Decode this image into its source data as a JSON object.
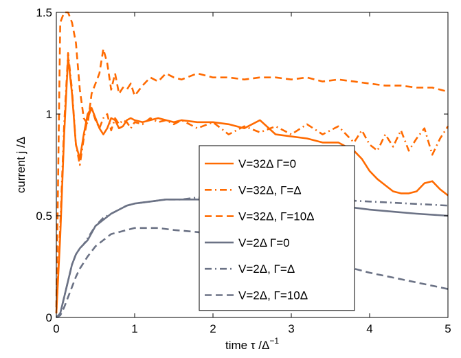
{
  "chart_data": {
    "type": "line",
    "title": "",
    "xlabel": "time τ /Δ",
    "xlabel_sup": "−1",
    "ylabel": "current j /Δ",
    "xlim": [
      0,
      5
    ],
    "ylim": [
      0,
      1.5
    ],
    "xticks": [
      0,
      1,
      2,
      3,
      4,
      5
    ],
    "xtick_labels": [
      "0",
      "1",
      "2",
      "3",
      "4",
      "5"
    ],
    "yticks": [
      0,
      0.5,
      1,
      1.5
    ],
    "ytick_labels": [
      "0",
      "0.5",
      "1",
      "1.5"
    ],
    "grid": false,
    "legend_position": "center-right",
    "colors": {
      "orange": "#ff6a00",
      "gray": "#6b7285"
    },
    "series": [
      {
        "name": "V=32Δ Γ=0",
        "color": "#ff6a00",
        "dash": "solid",
        "x": [
          0,
          0.05,
          0.1,
          0.15,
          0.2,
          0.25,
          0.3,
          0.35,
          0.4,
          0.45,
          0.5,
          0.55,
          0.6,
          0.65,
          0.7,
          0.75,
          0.8,
          0.85,
          0.9,
          0.95,
          1.0,
          1.1,
          1.2,
          1.3,
          1.4,
          1.5,
          1.6,
          1.8,
          2.0,
          2.2,
          2.4,
          2.6,
          2.8,
          3.0,
          3.2,
          3.4,
          3.6,
          3.8,
          3.9,
          4.0,
          4.1,
          4.2,
          4.3,
          4.4,
          4.5,
          4.6,
          4.7,
          4.8,
          4.9,
          5.0
        ],
        "y": [
          0.02,
          0.4,
          0.9,
          1.28,
          1.1,
          0.85,
          0.78,
          0.9,
          1.0,
          1.03,
          0.98,
          0.93,
          0.9,
          0.93,
          0.98,
          0.97,
          0.93,
          0.94,
          0.97,
          0.98,
          0.97,
          0.96,
          0.97,
          0.98,
          0.97,
          0.96,
          0.97,
          0.96,
          0.96,
          0.95,
          0.93,
          0.97,
          0.9,
          0.89,
          0.88,
          0.86,
          0.86,
          0.82,
          0.78,
          0.72,
          0.68,
          0.65,
          0.62,
          0.61,
          0.61,
          0.62,
          0.66,
          0.67,
          0.63,
          0.6
        ]
      },
      {
        "name": "V=32Δ, Γ=Δ",
        "color": "#ff6a00",
        "dash": "dashdot",
        "x": [
          0,
          0.05,
          0.1,
          0.15,
          0.2,
          0.25,
          0.3,
          0.35,
          0.4,
          0.45,
          0.5,
          0.55,
          0.6,
          0.65,
          0.7,
          0.75,
          0.8,
          0.85,
          0.9,
          0.95,
          1.0,
          1.1,
          1.2,
          1.3,
          1.4,
          1.5,
          1.6,
          1.8,
          2.0,
          2.2,
          2.4,
          2.6,
          2.8,
          3.0,
          3.2,
          3.4,
          3.6,
          3.8,
          3.9,
          4.0,
          4.1,
          4.2,
          4.3,
          4.4,
          4.5,
          4.6,
          4.7,
          4.8,
          4.9,
          5.0
        ],
        "y": [
          0.02,
          0.45,
          0.95,
          1.3,
          1.12,
          0.85,
          0.75,
          0.88,
          0.98,
          1.03,
          0.97,
          0.93,
          0.98,
          1.0,
          0.92,
          0.98,
          0.95,
          0.97,
          0.96,
          0.93,
          0.96,
          0.95,
          0.98,
          0.96,
          0.97,
          0.95,
          0.97,
          0.93,
          0.96,
          0.9,
          0.94,
          0.91,
          0.94,
          0.9,
          0.95,
          0.9,
          0.94,
          0.86,
          0.92,
          0.85,
          0.82,
          0.9,
          0.84,
          0.92,
          0.82,
          0.88,
          0.93,
          0.8,
          0.88,
          0.94
        ]
      },
      {
        "name": "V=32Δ, Γ=10Δ",
        "color": "#ff6a00",
        "dash": "dashed",
        "x": [
          0,
          0.05,
          0.1,
          0.15,
          0.2,
          0.25,
          0.3,
          0.35,
          0.4,
          0.45,
          0.5,
          0.55,
          0.6,
          0.65,
          0.7,
          0.75,
          0.8,
          0.85,
          0.9,
          0.95,
          1.0,
          1.1,
          1.2,
          1.3,
          1.4,
          1.5,
          1.6,
          1.8,
          2.0,
          2.2,
          2.4,
          2.6,
          2.8,
          3.0,
          3.2,
          3.4,
          3.6,
          3.8,
          4.0,
          4.2,
          4.4,
          4.6,
          4.8,
          5.0
        ],
        "y": [
          0.05,
          1.45,
          1.5,
          1.5,
          1.45,
          1.35,
          1.12,
          0.98,
          0.95,
          1.1,
          1.15,
          1.2,
          1.32,
          1.25,
          1.12,
          1.2,
          1.1,
          1.13,
          1.12,
          1.15,
          1.09,
          1.14,
          1.18,
          1.16,
          1.2,
          1.18,
          1.17,
          1.2,
          1.18,
          1.18,
          1.17,
          1.18,
          1.18,
          1.17,
          1.18,
          1.16,
          1.17,
          1.16,
          1.15,
          1.14,
          1.14,
          1.13,
          1.13,
          1.11
        ]
      },
      {
        "name": "V=2Δ Γ=0",
        "color": "#6b7285",
        "dash": "solid",
        "x": [
          0,
          0.05,
          0.1,
          0.15,
          0.2,
          0.25,
          0.3,
          0.35,
          0.4,
          0.5,
          0.6,
          0.7,
          0.8,
          0.9,
          1.0,
          1.2,
          1.4,
          1.6,
          1.8,
          2.0,
          2.2,
          2.5,
          2.8,
          3.0,
          3.2,
          3.5,
          3.8,
          4.0,
          4.3,
          4.6,
          5.0
        ],
        "y": [
          0.0,
          0.02,
          0.1,
          0.18,
          0.26,
          0.31,
          0.34,
          0.36,
          0.38,
          0.45,
          0.48,
          0.51,
          0.53,
          0.55,
          0.56,
          0.57,
          0.58,
          0.58,
          0.58,
          0.58,
          0.58,
          0.57,
          0.57,
          0.56,
          0.56,
          0.55,
          0.54,
          0.53,
          0.52,
          0.51,
          0.5
        ]
      },
      {
        "name": "V=2Δ, Γ=Δ",
        "color": "#6b7285",
        "dash": "dashdot",
        "x": [
          0,
          0.05,
          0.1,
          0.15,
          0.2,
          0.25,
          0.3,
          0.35,
          0.4,
          0.5,
          0.6,
          0.7,
          0.8,
          0.9,
          1.0,
          1.2,
          1.4,
          1.6,
          1.8,
          2.0,
          2.5,
          3.0,
          3.5,
          4.0,
          4.5,
          5.0
        ],
        "y": [
          0.0,
          0.02,
          0.1,
          0.18,
          0.26,
          0.31,
          0.34,
          0.36,
          0.39,
          0.45,
          0.49,
          0.51,
          0.53,
          0.55,
          0.56,
          0.57,
          0.58,
          0.58,
          0.59,
          0.59,
          0.59,
          0.58,
          0.58,
          0.57,
          0.56,
          0.55
        ]
      },
      {
        "name": "V=2Δ, Γ=10Δ",
        "color": "#6b7285",
        "dash": "dashed",
        "x": [
          0,
          0.05,
          0.1,
          0.15,
          0.2,
          0.25,
          0.3,
          0.35,
          0.4,
          0.5,
          0.6,
          0.7,
          0.8,
          0.9,
          1.0,
          1.1,
          1.2,
          1.3,
          1.5,
          1.8,
          2.0,
          2.5,
          3.0,
          3.5,
          4.0,
          4.5,
          5.0
        ],
        "y": [
          0.0,
          0.01,
          0.05,
          0.1,
          0.15,
          0.2,
          0.24,
          0.27,
          0.3,
          0.35,
          0.38,
          0.41,
          0.42,
          0.43,
          0.44,
          0.44,
          0.44,
          0.44,
          0.43,
          0.42,
          0.41,
          0.37,
          0.33,
          0.27,
          0.22,
          0.18,
          0.14
        ]
      }
    ]
  }
}
